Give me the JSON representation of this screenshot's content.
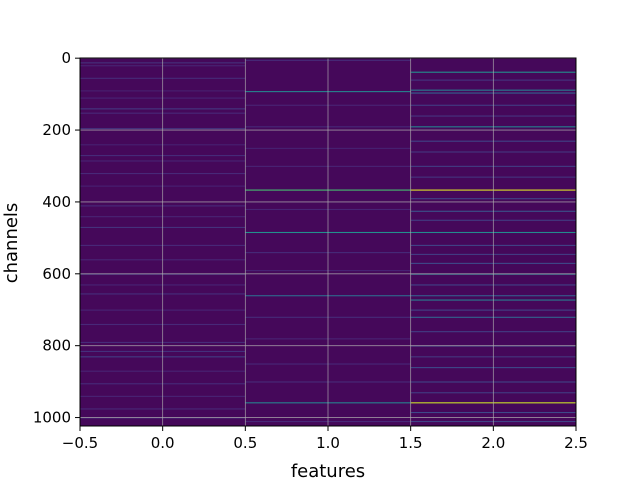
{
  "chart_data": {
    "type": "heatmap",
    "title": "",
    "xlabel": "features",
    "ylabel": "channels",
    "xlim": [
      -0.5,
      2.5
    ],
    "ylim": [
      1023.5,
      -0.5
    ],
    "x_ticks": [
      -0.5,
      0.0,
      0.5,
      1.0,
      1.5,
      2.0,
      2.5
    ],
    "x_tick_labels": [
      "−0.5",
      "0.0",
      "0.5",
      "1.0",
      "1.5",
      "2.0",
      "2.5"
    ],
    "y_ticks": [
      0,
      200,
      400,
      600,
      800,
      1000
    ],
    "y_tick_labels": [
      "0",
      "200",
      "400",
      "600",
      "800",
      "1000"
    ],
    "grid": true,
    "colormap": "viridis",
    "background_value": 0.02,
    "columns": [
      {
        "feature": 0,
        "bands": [
          {
            "channel": 12,
            "value": 0.14
          },
          {
            "channel": 20,
            "value": 0.1
          },
          {
            "channel": 55,
            "value": 0.12
          },
          {
            "channel": 90,
            "value": 0.09
          },
          {
            "channel": 110,
            "value": 0.1
          },
          {
            "channel": 140,
            "value": 0.16
          },
          {
            "channel": 152,
            "value": 0.11
          },
          {
            "channel": 195,
            "value": 0.15
          },
          {
            "channel": 240,
            "value": 0.09
          },
          {
            "channel": 270,
            "value": 0.12
          },
          {
            "channel": 285,
            "value": 0.1
          },
          {
            "channel": 320,
            "value": 0.11
          },
          {
            "channel": 355,
            "value": 0.09
          },
          {
            "channel": 410,
            "value": 0.12
          },
          {
            "channel": 440,
            "value": 0.1
          },
          {
            "channel": 470,
            "value": 0.14
          },
          {
            "channel": 520,
            "value": 0.11
          },
          {
            "channel": 560,
            "value": 0.1
          },
          {
            "channel": 600,
            "value": 0.17
          },
          {
            "channel": 630,
            "value": 0.1
          },
          {
            "channel": 655,
            "value": 0.13
          },
          {
            "channel": 700,
            "value": 0.1
          },
          {
            "channel": 740,
            "value": 0.11
          },
          {
            "channel": 790,
            "value": 0.12
          },
          {
            "channel": 815,
            "value": 0.14
          },
          {
            "channel": 830,
            "value": 0.18
          },
          {
            "channel": 870,
            "value": 0.1
          },
          {
            "channel": 905,
            "value": 0.12
          },
          {
            "channel": 940,
            "value": 0.1
          },
          {
            "channel": 975,
            "value": 0.11
          },
          {
            "channel": 1000,
            "value": 0.13
          }
        ]
      },
      {
        "feature": 1,
        "bands": [
          {
            "channel": 5,
            "value": 0.12
          },
          {
            "channel": 92,
            "value": 0.45
          },
          {
            "channel": 130,
            "value": 0.1
          },
          {
            "channel": 190,
            "value": 0.12
          },
          {
            "channel": 250,
            "value": 0.09
          },
          {
            "channel": 300,
            "value": 0.1
          },
          {
            "channel": 366,
            "value": 0.7
          },
          {
            "channel": 420,
            "value": 0.1
          },
          {
            "channel": 484,
            "value": 0.5
          },
          {
            "channel": 540,
            "value": 0.12
          },
          {
            "channel": 590,
            "value": 0.1
          },
          {
            "channel": 660,
            "value": 0.35
          },
          {
            "channel": 720,
            "value": 0.12
          },
          {
            "channel": 780,
            "value": 0.1
          },
          {
            "channel": 850,
            "value": 0.11
          },
          {
            "channel": 900,
            "value": 0.12
          },
          {
            "channel": 958,
            "value": 0.45
          },
          {
            "channel": 1010,
            "value": 0.11
          }
        ]
      },
      {
        "feature": 2,
        "bands": [
          {
            "channel": 38,
            "value": 0.5
          },
          {
            "channel": 60,
            "value": 0.15
          },
          {
            "channel": 88,
            "value": 0.42
          },
          {
            "channel": 96,
            "value": 0.3
          },
          {
            "channel": 130,
            "value": 0.18
          },
          {
            "channel": 160,
            "value": 0.15
          },
          {
            "channel": 190,
            "value": 0.45
          },
          {
            "channel": 230,
            "value": 0.2
          },
          {
            "channel": 260,
            "value": 0.16
          },
          {
            "channel": 300,
            "value": 0.18
          },
          {
            "channel": 330,
            "value": 0.15
          },
          {
            "channel": 366,
            "value": 0.95
          },
          {
            "channel": 390,
            "value": 0.2
          },
          {
            "channel": 425,
            "value": 0.25
          },
          {
            "channel": 450,
            "value": 0.18
          },
          {
            "channel": 484,
            "value": 0.48
          },
          {
            "channel": 520,
            "value": 0.2
          },
          {
            "channel": 545,
            "value": 0.18
          },
          {
            "channel": 570,
            "value": 0.22
          },
          {
            "channel": 600,
            "value": 0.4
          },
          {
            "channel": 630,
            "value": 0.2
          },
          {
            "channel": 660,
            "value": 0.3
          },
          {
            "channel": 672,
            "value": 0.42
          },
          {
            "channel": 700,
            "value": 0.2
          },
          {
            "channel": 720,
            "value": 0.32
          },
          {
            "channel": 760,
            "value": 0.18
          },
          {
            "channel": 800,
            "value": 0.2
          },
          {
            "channel": 830,
            "value": 0.16
          },
          {
            "channel": 860,
            "value": 0.22
          },
          {
            "channel": 900,
            "value": 0.2
          },
          {
            "channel": 930,
            "value": 0.18
          },
          {
            "channel": 958,
            "value": 0.92
          },
          {
            "channel": 985,
            "value": 0.22
          },
          {
            "channel": 1010,
            "value": 0.2
          }
        ]
      }
    ]
  }
}
